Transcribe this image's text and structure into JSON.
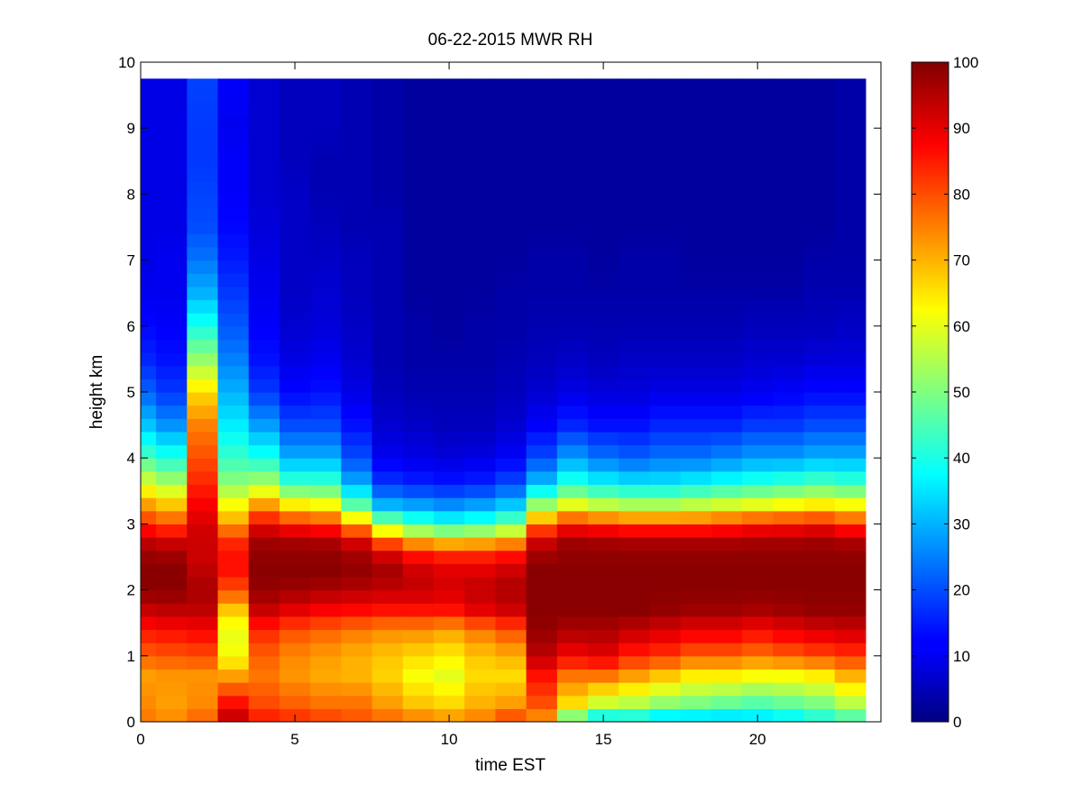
{
  "chart_data": {
    "type": "heatmap",
    "title": "06-22-2015 MWR RH",
    "xlabel": "time EST",
    "ylabel": "height km",
    "xlim": [
      0,
      24
    ],
    "ylim": [
      0,
      10
    ],
    "xticks": [
      "0",
      "5",
      "10",
      "15",
      "20"
    ],
    "xtick_values": [
      0,
      5,
      10,
      15,
      20
    ],
    "yticks": [
      "0",
      "1",
      "2",
      "3",
      "4",
      "5",
      "6",
      "7",
      "8",
      "9",
      "10"
    ],
    "ytick_values": [
      0,
      1,
      2,
      3,
      4,
      5,
      6,
      7,
      8,
      9,
      10
    ],
    "colorbar": {
      "range": [
        0,
        100
      ],
      "colormap": "jet",
      "ticks": [
        "0",
        "10",
        "20",
        "30",
        "40",
        "50",
        "60",
        "70",
        "80",
        "90",
        "100"
      ],
      "tick_values": [
        0,
        10,
        20,
        30,
        40,
        50,
        60,
        70,
        80,
        90,
        100
      ]
    },
    "time_hours": [
      0,
      1,
      2,
      3,
      4,
      5,
      6,
      7,
      8,
      9,
      10,
      11,
      12,
      13,
      14,
      15,
      16,
      17,
      18,
      19,
      20,
      21,
      22,
      23
    ],
    "profile_heights_km": [
      0,
      0.3,
      0.7,
      1.0,
      1.4,
      1.7,
      2.0,
      2.3,
      2.6,
      2.8,
      3.0,
      3.3,
      3.6,
      4.0,
      4.5,
      5.0,
      5.5,
      6.0,
      6.5,
      7.0,
      7.5,
      8.0,
      8.5,
      9.0,
      9.75
    ],
    "rh_profiles_percent": [
      [
        76,
        74,
        72,
        78,
        86,
        93,
        99,
        99,
        97,
        92,
        83,
        72,
        60,
        45,
        32,
        22,
        16,
        13,
        11,
        10,
        10,
        10,
        10,
        10,
        10
      ],
      [
        74,
        72,
        73,
        79,
        87,
        94,
        99,
        99,
        96,
        90,
        80,
        68,
        55,
        41,
        27,
        18,
        14,
        12,
        11,
        11,
        10,
        10,
        10,
        10,
        10
      ],
      [
        78,
        74,
        73,
        80,
        88,
        94,
        96,
        94,
        92,
        93,
        91,
        88,
        84,
        80,
        75,
        66,
        52,
        40,
        30,
        24,
        20,
        19,
        18,
        18,
        19
      ],
      [
        95,
        86,
        72,
        62,
        60,
        68,
        80,
        86,
        86,
        82,
        72,
        62,
        52,
        43,
        36,
        30,
        25,
        21,
        18,
        15,
        13,
        12,
        12,
        11,
        12
      ],
      [
        86,
        80,
        76,
        78,
        84,
        93,
        98,
        99,
        98,
        96,
        88,
        72,
        55,
        40,
        28,
        18,
        14,
        12,
        11,
        10,
        9,
        8,
        8,
        8,
        8
      ],
      [
        84,
        78,
        73,
        74,
        80,
        90,
        97,
        99,
        98,
        95,
        84,
        64,
        44,
        30,
        20,
        13,
        10,
        8,
        7,
        7,
        7,
        7,
        6,
        6,
        6
      ],
      [
        82,
        76,
        71,
        72,
        78,
        88,
        96,
        99,
        98,
        94,
        82,
        62,
        44,
        30,
        20,
        14,
        11,
        9,
        8,
        7,
        6,
        5,
        5,
        6,
        6
      ],
      [
        80,
        76,
        70,
        70,
        76,
        87,
        95,
        98,
        96,
        88,
        70,
        46,
        30,
        20,
        14,
        10,
        8,
        7,
        6,
        6,
        5,
        5,
        5,
        5,
        5
      ],
      [
        78,
        72,
        67,
        68,
        74,
        86,
        94,
        96,
        90,
        72,
        52,
        30,
        18,
        11,
        8,
        6,
        5,
        5,
        5,
        5,
        5,
        4,
        4,
        4,
        4
      ],
      [
        76,
        68,
        62,
        66,
        74,
        86,
        94,
        92,
        84,
        64,
        44,
        28,
        16,
        10,
        7,
        5,
        4,
        4,
        3,
        3,
        3,
        3,
        3,
        3,
        3
      ],
      [
        74,
        66,
        60,
        64,
        72,
        86,
        92,
        90,
        82,
        60,
        40,
        26,
        15,
        9,
        6,
        5,
        4,
        3,
        3,
        3,
        3,
        3,
        3,
        3,
        3
      ],
      [
        76,
        70,
        66,
        68,
        76,
        90,
        94,
        90,
        82,
        62,
        42,
        28,
        16,
        10,
        6,
        5,
        4,
        4,
        3,
        3,
        3,
        3,
        3,
        3,
        3
      ],
      [
        82,
        72,
        66,
        70,
        80,
        92,
        96,
        92,
        84,
        66,
        48,
        32,
        20,
        12,
        8,
        6,
        5,
        4,
        4,
        3,
        3,
        3,
        3,
        3,
        3
      ],
      [
        72,
        80,
        86,
        94,
        98,
        99,
        99,
        99,
        96,
        90,
        75,
        52,
        32,
        20,
        12,
        8,
        6,
        5,
        4,
        4,
        3,
        3,
        3,
        3,
        3
      ],
      [
        44,
        66,
        76,
        88,
        96,
        99,
        99,
        99,
        98,
        96,
        84,
        60,
        42,
        28,
        16,
        10,
        7,
        5,
        4,
        4,
        3,
        3,
        3,
        3,
        3
      ],
      [
        32,
        58,
        76,
        90,
        96,
        99,
        99,
        99,
        98,
        95,
        82,
        56,
        38,
        24,
        14,
        9,
        6,
        5,
        4,
        3,
        3,
        3,
        3,
        3,
        3
      ],
      [
        34,
        56,
        72,
        84,
        94,
        99,
        99,
        99,
        98,
        94,
        80,
        54,
        36,
        22,
        14,
        9,
        7,
        5,
        4,
        4,
        3,
        3,
        3,
        3,
        3
      ],
      [
        30,
        52,
        68,
        82,
        92,
        98,
        99,
        99,
        98,
        94,
        80,
        54,
        36,
        24,
        16,
        10,
        7,
        5,
        4,
        4,
        3,
        3,
        3,
        3,
        3
      ],
      [
        30,
        50,
        64,
        78,
        90,
        97,
        99,
        99,
        98,
        94,
        80,
        56,
        38,
        24,
        16,
        10,
        7,
        5,
        4,
        3,
        3,
        3,
        3,
        3,
        3
      ],
      [
        30,
        48,
        64,
        78,
        90,
        97,
        99,
        99,
        98,
        94,
        82,
        58,
        40,
        26,
        16,
        10,
        7,
        5,
        4,
        3,
        3,
        3,
        3,
        3,
        3
      ],
      [
        32,
        46,
        62,
        76,
        88,
        96,
        99,
        99,
        98,
        95,
        84,
        60,
        42,
        28,
        18,
        11,
        8,
        6,
        4,
        3,
        3,
        3,
        3,
        3,
        3
      ],
      [
        34,
        48,
        62,
        78,
        90,
        97,
        99,
        99,
        98,
        95,
        85,
        62,
        44,
        28,
        18,
        12,
        8,
        6,
        4,
        3,
        3,
        3,
        3,
        3,
        3
      ],
      [
        38,
        50,
        64,
        80,
        92,
        98,
        99,
        99,
        98,
        96,
        86,
        64,
        46,
        30,
        20,
        13,
        9,
        6,
        5,
        4,
        3,
        3,
        3,
        3,
        3
      ],
      [
        42,
        56,
        70,
        82,
        93,
        98,
        99,
        99,
        98,
        94,
        82,
        62,
        44,
        30,
        20,
        13,
        9,
        7,
        5,
        4,
        4,
        4,
        4,
        4,
        4
      ]
    ]
  }
}
